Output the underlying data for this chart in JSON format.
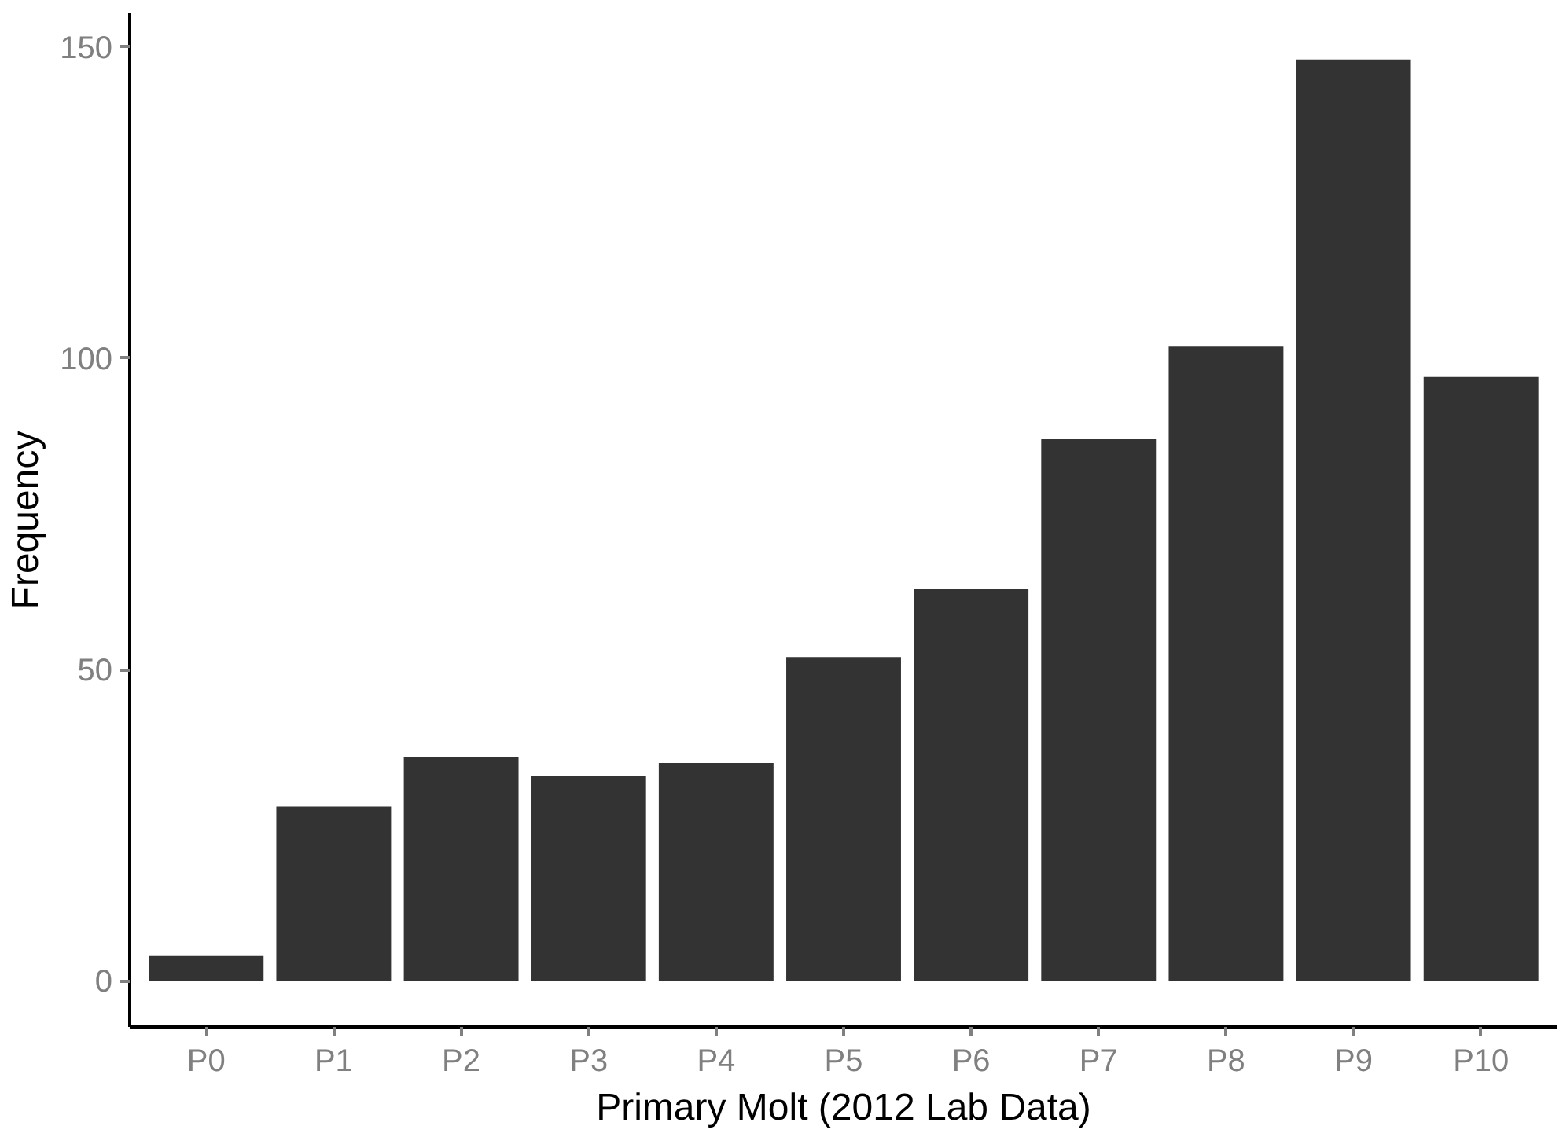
{
  "chart_data": {
    "type": "bar",
    "xlabel": "Primary Molt (2012 Lab Data)",
    "ylabel": "Frequency",
    "categories": [
      "P0",
      "P1",
      "P2",
      "P3",
      "P4",
      "P5",
      "P6",
      "P7",
      "P8",
      "P9",
      "P10"
    ],
    "values": [
      4,
      28,
      36,
      33,
      35,
      52,
      63,
      87,
      102,
      148,
      97
    ],
    "color": "#333333",
    "ylim": [
      -7.4,
      155.4
    ],
    "yticks": [
      0,
      50,
      100,
      150
    ],
    "grid": false
  }
}
